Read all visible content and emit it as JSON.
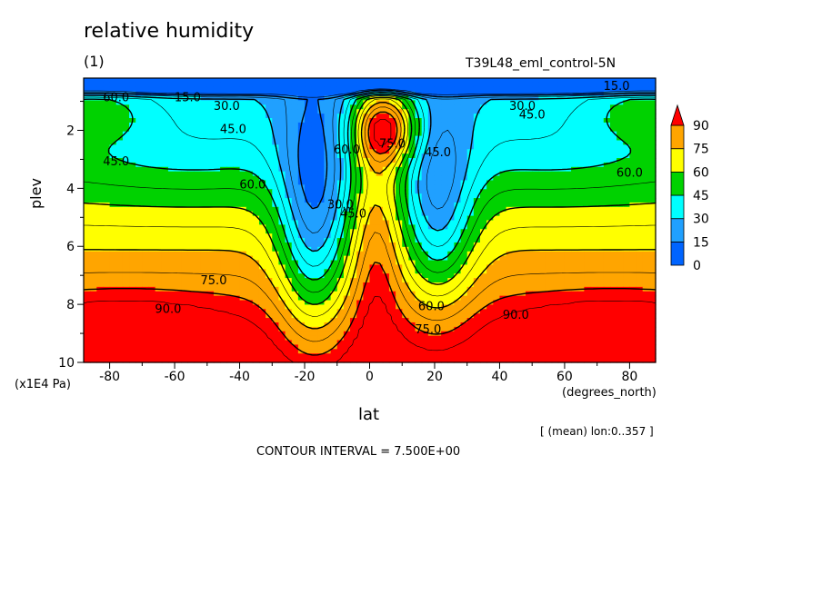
{
  "chart_data": {
    "type": "heatmap",
    "title": "relative humidity",
    "subtitle": "(1)",
    "run": "T39L48_eml_control-5N",
    "xlabel": "lat",
    "xunits": "(degrees_north)",
    "ylabel": "plev",
    "yunits": "(x1E4 Pa)",
    "xlim": [
      -88,
      88
    ],
    "ylim": [
      10,
      0.2
    ],
    "x_ticks": [
      -80,
      -60,
      -40,
      -20,
      0,
      20,
      40,
      60,
      80
    ],
    "y_ticks": [
      2,
      4,
      6,
      8,
      10
    ],
    "levels": [
      0,
      15,
      30,
      45,
      60,
      75,
      90
    ],
    "colors": [
      "#0064ff",
      "#20a0ff",
      "#00ffff",
      "#00d200",
      "#ffff00",
      "#ffa500",
      "#ff0000"
    ],
    "colorbar_labels": [
      "0",
      "15",
      "30",
      "45",
      "60",
      "75",
      "90"
    ],
    "contour_labels": [
      "15.0",
      "15.0",
      "30.0",
      "30.0",
      "45.0",
      "45.0",
      "45.0",
      "60.0",
      "60.0",
      "60.0",
      "60.0",
      "75.0",
      "75.0",
      "75.0",
      "90.0",
      "90.0",
      "30.0",
      "45.0",
      "45.0",
      "60.0"
    ],
    "mean_note": "[ (mean) lon:0..357 ]",
    "contour_interval": "CONTOUR INTERVAL = 7.500E+00"
  }
}
